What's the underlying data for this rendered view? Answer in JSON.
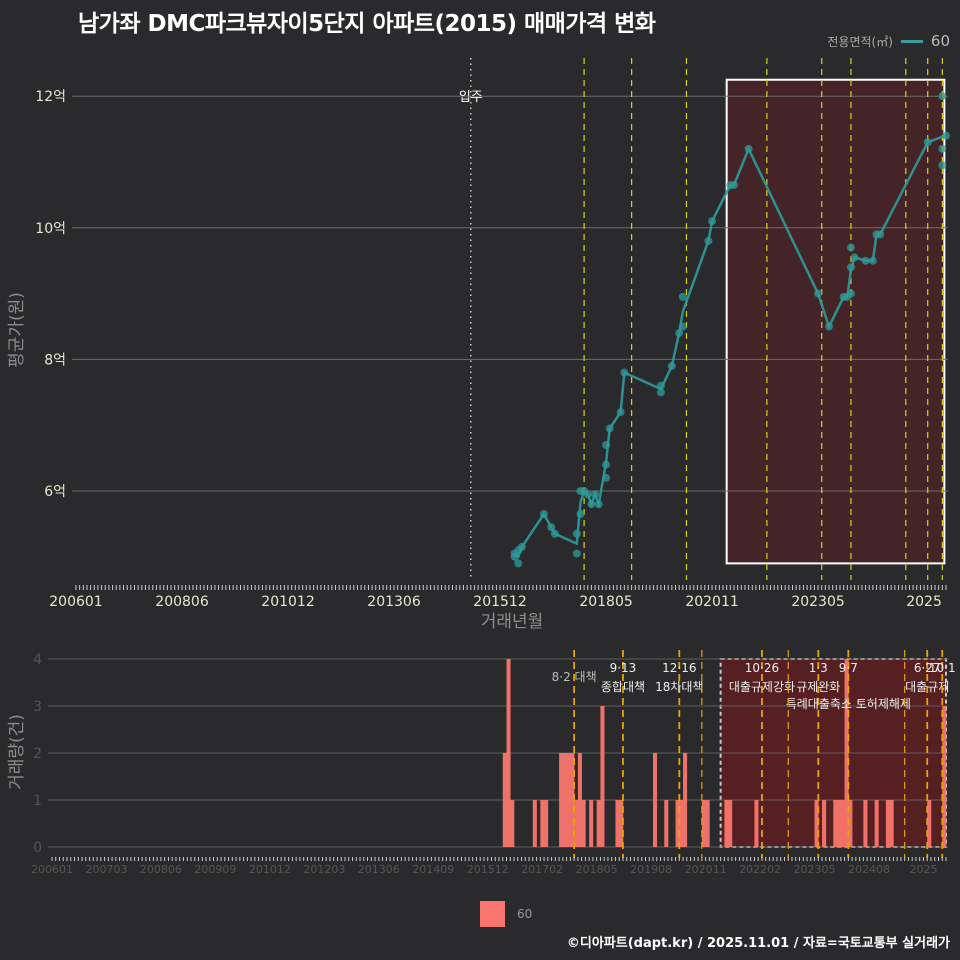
{
  "title": "남가좌 DMC파크뷰자이5단지 아파트(2015) 매매가격 변화",
  "legend_top": {
    "label": "전용면적(㎡)",
    "value": "60",
    "color": "#3a9c9c"
  },
  "legend_bottom": {
    "value": "60",
    "color": "#f8766d"
  },
  "footer": "©디아파트(dapt.kr) / 2025.11.01 / 자료=국토교통부 실거래가",
  "chart_data": [
    {
      "type": "line",
      "title": "남가좌 DMC파크뷰자이5단지 아파트(2015) 매매가격 변화",
      "xlabel": "거래년월",
      "ylabel": "평균가(원)",
      "x_tick_labels": [
        "200601",
        "200806",
        "201012",
        "201306",
        "201512",
        "201805",
        "202011",
        "202305",
        "2025"
      ],
      "y_tick_labels": [
        "6억",
        "8억",
        "10억",
        "12억"
      ],
      "ylim_eok": [
        4.6,
        12.5
      ],
      "grid": true,
      "annotations": [
        {
          "label": "입주",
          "x": "2015-01",
          "style": "dotted-white"
        }
      ],
      "highlight_box": {
        "from": "2020-11",
        "to": "2025-10",
        "y_from_eok": 4.9,
        "y_to_eok": 12.25
      },
      "policy_lines": [
        "2017-08",
        "2018-09",
        "2019-12",
        "2021-10",
        "2023-01",
        "2023-09",
        "2024-12",
        "2025-06",
        "2025-10"
      ],
      "series": [
        {
          "name": "60",
          "color": "#3a9c9c",
          "points": [
            [
              "2016-01",
              5.05
            ],
            [
              "2016-01",
              5.0
            ],
            [
              "2016-02",
              4.9
            ],
            [
              "2016-02",
              5.1
            ],
            [
              "2016-03",
              5.15
            ],
            [
              "2016-09",
              5.65
            ],
            [
              "2016-11",
              5.45
            ],
            [
              "2016-12",
              5.35
            ],
            [
              "2017-06",
              5.35
            ],
            [
              "2017-06",
              5.05
            ],
            [
              "2017-07",
              5.65
            ],
            [
              "2017-07",
              6.0
            ],
            [
              "2017-08",
              6.0
            ],
            [
              "2017-09",
              5.95
            ],
            [
              "2017-10",
              5.8
            ],
            [
              "2017-11",
              5.95
            ],
            [
              "2017-12",
              5.8
            ],
            [
              "2018-02",
              6.2
            ],
            [
              "2018-02",
              6.4
            ],
            [
              "2018-02",
              6.7
            ],
            [
              "2018-03",
              6.95
            ],
            [
              "2018-06",
              7.2
            ],
            [
              "2018-07",
              7.8
            ],
            [
              "2019-05",
              7.6
            ],
            [
              "2019-05",
              7.5
            ],
            [
              "2019-08",
              7.9
            ],
            [
              "2019-10",
              8.4
            ],
            [
              "2019-11",
              8.5
            ],
            [
              "2019-11",
              8.95
            ],
            [
              "2020-06",
              9.8
            ],
            [
              "2020-07",
              10.1
            ],
            [
              "2020-12",
              10.65
            ],
            [
              "2021-01",
              10.65
            ],
            [
              "2021-05",
              11.2
            ],
            [
              "2022-12",
              9.0
            ],
            [
              "2023-03",
              8.5
            ],
            [
              "2023-07",
              8.95
            ],
            [
              "2023-08",
              8.95
            ],
            [
              "2023-09",
              9.0
            ],
            [
              "2023-09",
              9.4
            ],
            [
              "2023-09",
              9.7
            ],
            [
              "2023-10",
              9.55
            ],
            [
              "2024-01",
              9.5
            ],
            [
              "2024-03",
              9.5
            ],
            [
              "2024-04",
              9.9
            ],
            [
              "2024-05",
              9.9
            ],
            [
              "2025-06",
              11.3
            ],
            [
              "2025-10",
              12.0
            ],
            [
              "2025-10",
              11.2
            ],
            [
              "2025-10",
              10.95
            ],
            [
              "2025-11",
              11.4
            ]
          ]
        }
      ]
    },
    {
      "type": "bar",
      "ylabel": "거래량(건)",
      "x_tick_labels": [
        "200601",
        "200703",
        "200806",
        "200909",
        "201012",
        "201203",
        "201306",
        "201409",
        "201512",
        "201702",
        "201805",
        "201908",
        "202011",
        "202202",
        "202305",
        "202408",
        "2025"
      ],
      "y_tick_labels": [
        "0",
        "1",
        "2",
        "3",
        "4"
      ],
      "ylim": [
        0,
        4
      ],
      "grid": true,
      "highlight_box": {
        "from": "2020-11",
        "to": "2025-11",
        "style": "dashed"
      },
      "policy_annotations": [
        {
          "date": "2017-08",
          "line1": "8·2 대책",
          "line2": ""
        },
        {
          "date": "2018-09",
          "line1": "9·13",
          "line2": "종합대책"
        },
        {
          "date": "2019-12",
          "line1": "12·16",
          "line2": "18차대책"
        },
        {
          "date": "2021-10",
          "line1": "10·26",
          "line2": "대출규제강화"
        },
        {
          "date": "2023-01",
          "line1": "1·3",
          "line2": "규제완화"
        },
        {
          "date": "2023-09",
          "line1": "9·7",
          "line2": "특례대출축소 토허제해제"
        },
        {
          "date": "2025-06",
          "line1": "6·27",
          "line2": "대출규제"
        },
        {
          "date": "2025-10",
          "line1": "10·1",
          "line2": ""
        }
      ],
      "series": [
        {
          "name": "60",
          "color": "#f8766d",
          "bars": [
            [
              "2016-01",
              2
            ],
            [
              "2016-02",
              4
            ],
            [
              "2016-03",
              1
            ],
            [
              "2016-09",
              1
            ],
            [
              "2016-11",
              1
            ],
            [
              "2016-12",
              1
            ],
            [
              "2017-04",
              2
            ],
            [
              "2017-05",
              2
            ],
            [
              "2017-06",
              2
            ],
            [
              "2017-07",
              2
            ],
            [
              "2017-08",
              1
            ],
            [
              "2017-09",
              2
            ],
            [
              "2017-10",
              1
            ],
            [
              "2017-12",
              1
            ],
            [
              "2018-02",
              1
            ],
            [
              "2018-03",
              3
            ],
            [
              "2018-07",
              1
            ],
            [
              "2018-08",
              1
            ],
            [
              "2019-05",
              2
            ],
            [
              "2019-08",
              1
            ],
            [
              "2019-11",
              1
            ],
            [
              "2019-12",
              1
            ],
            [
              "2020-01",
              2
            ],
            [
              "2020-06",
              1
            ],
            [
              "2020-07",
              1
            ],
            [
              "2020-12",
              1
            ],
            [
              "2021-01",
              1
            ],
            [
              "2021-08",
              1
            ],
            [
              "2022-12",
              1
            ],
            [
              "2023-02",
              1
            ],
            [
              "2023-05",
              1
            ],
            [
              "2023-06",
              1
            ],
            [
              "2023-07",
              1
            ],
            [
              "2023-08",
              4
            ],
            [
              "2023-09",
              1
            ],
            [
              "2024-01",
              1
            ],
            [
              "2024-04",
              1
            ],
            [
              "2024-07",
              1
            ],
            [
              "2024-08",
              1
            ],
            [
              "2025-06",
              1
            ],
            [
              "2025-10",
              3
            ]
          ]
        }
      ]
    }
  ]
}
